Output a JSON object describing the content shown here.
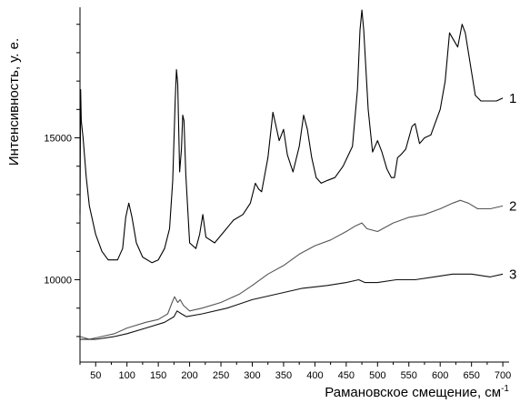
{
  "chart_data": {
    "type": "line",
    "xlabel": "Рамановское смещение, см",
    "xlabel_superscript": "-1",
    "ylabel": "Интенсивность, у. е.",
    "xlim": [
      25,
      710
    ],
    "ylim": [
      7100,
      19600
    ],
    "x_ticks": [
      50,
      100,
      150,
      200,
      250,
      300,
      350,
      400,
      450,
      500,
      550,
      600,
      650,
      700
    ],
    "y_ticks_labeled": [
      10000,
      15000
    ],
    "grid": false,
    "colors": {
      "series_1": "#000000",
      "series_2": "#555555",
      "series_3": "#111111"
    },
    "series": [
      {
        "name": "1",
        "points": [
          [
            25,
            12300
          ],
          [
            26,
            16700
          ],
          [
            27,
            15600
          ],
          [
            30,
            15000
          ],
          [
            35,
            13600
          ],
          [
            40,
            12600
          ],
          [
            50,
            11600
          ],
          [
            60,
            11000
          ],
          [
            70,
            10700
          ],
          [
            85,
            10700
          ],
          [
            93,
            11100
          ],
          [
            98,
            12200
          ],
          [
            103,
            12700
          ],
          [
            108,
            12200
          ],
          [
            115,
            11300
          ],
          [
            125,
            10800
          ],
          [
            140,
            10600
          ],
          [
            150,
            10700
          ],
          [
            160,
            11100
          ],
          [
            168,
            11800
          ],
          [
            173,
            13500
          ],
          [
            177,
            16300
          ],
          [
            179,
            17400
          ],
          [
            181,
            16900
          ],
          [
            184,
            13800
          ],
          [
            187,
            14600
          ],
          [
            189,
            15800
          ],
          [
            191,
            15600
          ],
          [
            194,
            13700
          ],
          [
            200,
            11300
          ],
          [
            210,
            11100
          ],
          [
            216,
            11600
          ],
          [
            221,
            12300
          ],
          [
            226,
            11500
          ],
          [
            240,
            11300
          ],
          [
            255,
            11700
          ],
          [
            270,
            12100
          ],
          [
            285,
            12300
          ],
          [
            297,
            12700
          ],
          [
            305,
            13400
          ],
          [
            310,
            13200
          ],
          [
            315,
            13100
          ],
          [
            325,
            14300
          ],
          [
            333,
            15900
          ],
          [
            337,
            15500
          ],
          [
            343,
            14900
          ],
          [
            350,
            15300
          ],
          [
            356,
            14400
          ],
          [
            365,
            13800
          ],
          [
            375,
            14700
          ],
          [
            382,
            15800
          ],
          [
            388,
            15300
          ],
          [
            395,
            14300
          ],
          [
            402,
            13600
          ],
          [
            410,
            13400
          ],
          [
            420,
            13500
          ],
          [
            432,
            13600
          ],
          [
            445,
            14000
          ],
          [
            460,
            14700
          ],
          [
            468,
            16700
          ],
          [
            472,
            18800
          ],
          [
            475,
            19500
          ],
          [
            478,
            18800
          ],
          [
            485,
            16000
          ],
          [
            492,
            14500
          ],
          [
            500,
            14900
          ],
          [
            507,
            14500
          ],
          [
            515,
            13900
          ],
          [
            522,
            13600
          ],
          [
            527,
            13600
          ],
          [
            532,
            14300
          ],
          [
            537,
            14400
          ],
          [
            545,
            14600
          ],
          [
            555,
            15400
          ],
          [
            560,
            15500
          ],
          [
            567,
            14800
          ],
          [
            575,
            15000
          ],
          [
            585,
            15100
          ],
          [
            600,
            16000
          ],
          [
            608,
            17000
          ],
          [
            615,
            18700
          ],
          [
            620,
            18500
          ],
          [
            628,
            18200
          ],
          [
            635,
            19000
          ],
          [
            640,
            18700
          ],
          [
            648,
            17600
          ],
          [
            656,
            16500
          ],
          [
            665,
            16300
          ],
          [
            675,
            16300
          ],
          [
            690,
            16300
          ],
          [
            700,
            16400
          ]
        ]
      },
      {
        "name": "2",
        "points": [
          [
            25,
            8000
          ],
          [
            40,
            7900
          ],
          [
            60,
            8000
          ],
          [
            80,
            8100
          ],
          [
            100,
            8300
          ],
          [
            130,
            8500
          ],
          [
            150,
            8600
          ],
          [
            165,
            8800
          ],
          [
            172,
            9200
          ],
          [
            176,
            9400
          ],
          [
            181,
            9200
          ],
          [
            185,
            9300
          ],
          [
            190,
            9100
          ],
          [
            200,
            8900
          ],
          [
            220,
            9000
          ],
          [
            250,
            9200
          ],
          [
            280,
            9500
          ],
          [
            300,
            9800
          ],
          [
            325,
            10200
          ],
          [
            350,
            10500
          ],
          [
            375,
            10900
          ],
          [
            400,
            11200
          ],
          [
            425,
            11400
          ],
          [
            450,
            11700
          ],
          [
            465,
            11900
          ],
          [
            475,
            12000
          ],
          [
            483,
            11800
          ],
          [
            500,
            11700
          ],
          [
            525,
            12000
          ],
          [
            550,
            12200
          ],
          [
            575,
            12300
          ],
          [
            600,
            12500
          ],
          [
            620,
            12700
          ],
          [
            632,
            12800
          ],
          [
            645,
            12700
          ],
          [
            660,
            12500
          ],
          [
            680,
            12500
          ],
          [
            700,
            12600
          ]
        ]
      },
      {
        "name": "3",
        "points": [
          [
            25,
            7900
          ],
          [
            50,
            7900
          ],
          [
            80,
            8000
          ],
          [
            100,
            8100
          ],
          [
            130,
            8300
          ],
          [
            160,
            8500
          ],
          [
            175,
            8700
          ],
          [
            180,
            8900
          ],
          [
            187,
            8800
          ],
          [
            195,
            8700
          ],
          [
            220,
            8800
          ],
          [
            260,
            9000
          ],
          [
            300,
            9300
          ],
          [
            340,
            9500
          ],
          [
            380,
            9700
          ],
          [
            420,
            9800
          ],
          [
            450,
            9900
          ],
          [
            470,
            10000
          ],
          [
            480,
            9900
          ],
          [
            500,
            9900
          ],
          [
            530,
            10000
          ],
          [
            560,
            10000
          ],
          [
            590,
            10100
          ],
          [
            620,
            10200
          ],
          [
            650,
            10200
          ],
          [
            680,
            10100
          ],
          [
            700,
            10200
          ]
        ]
      }
    ]
  }
}
